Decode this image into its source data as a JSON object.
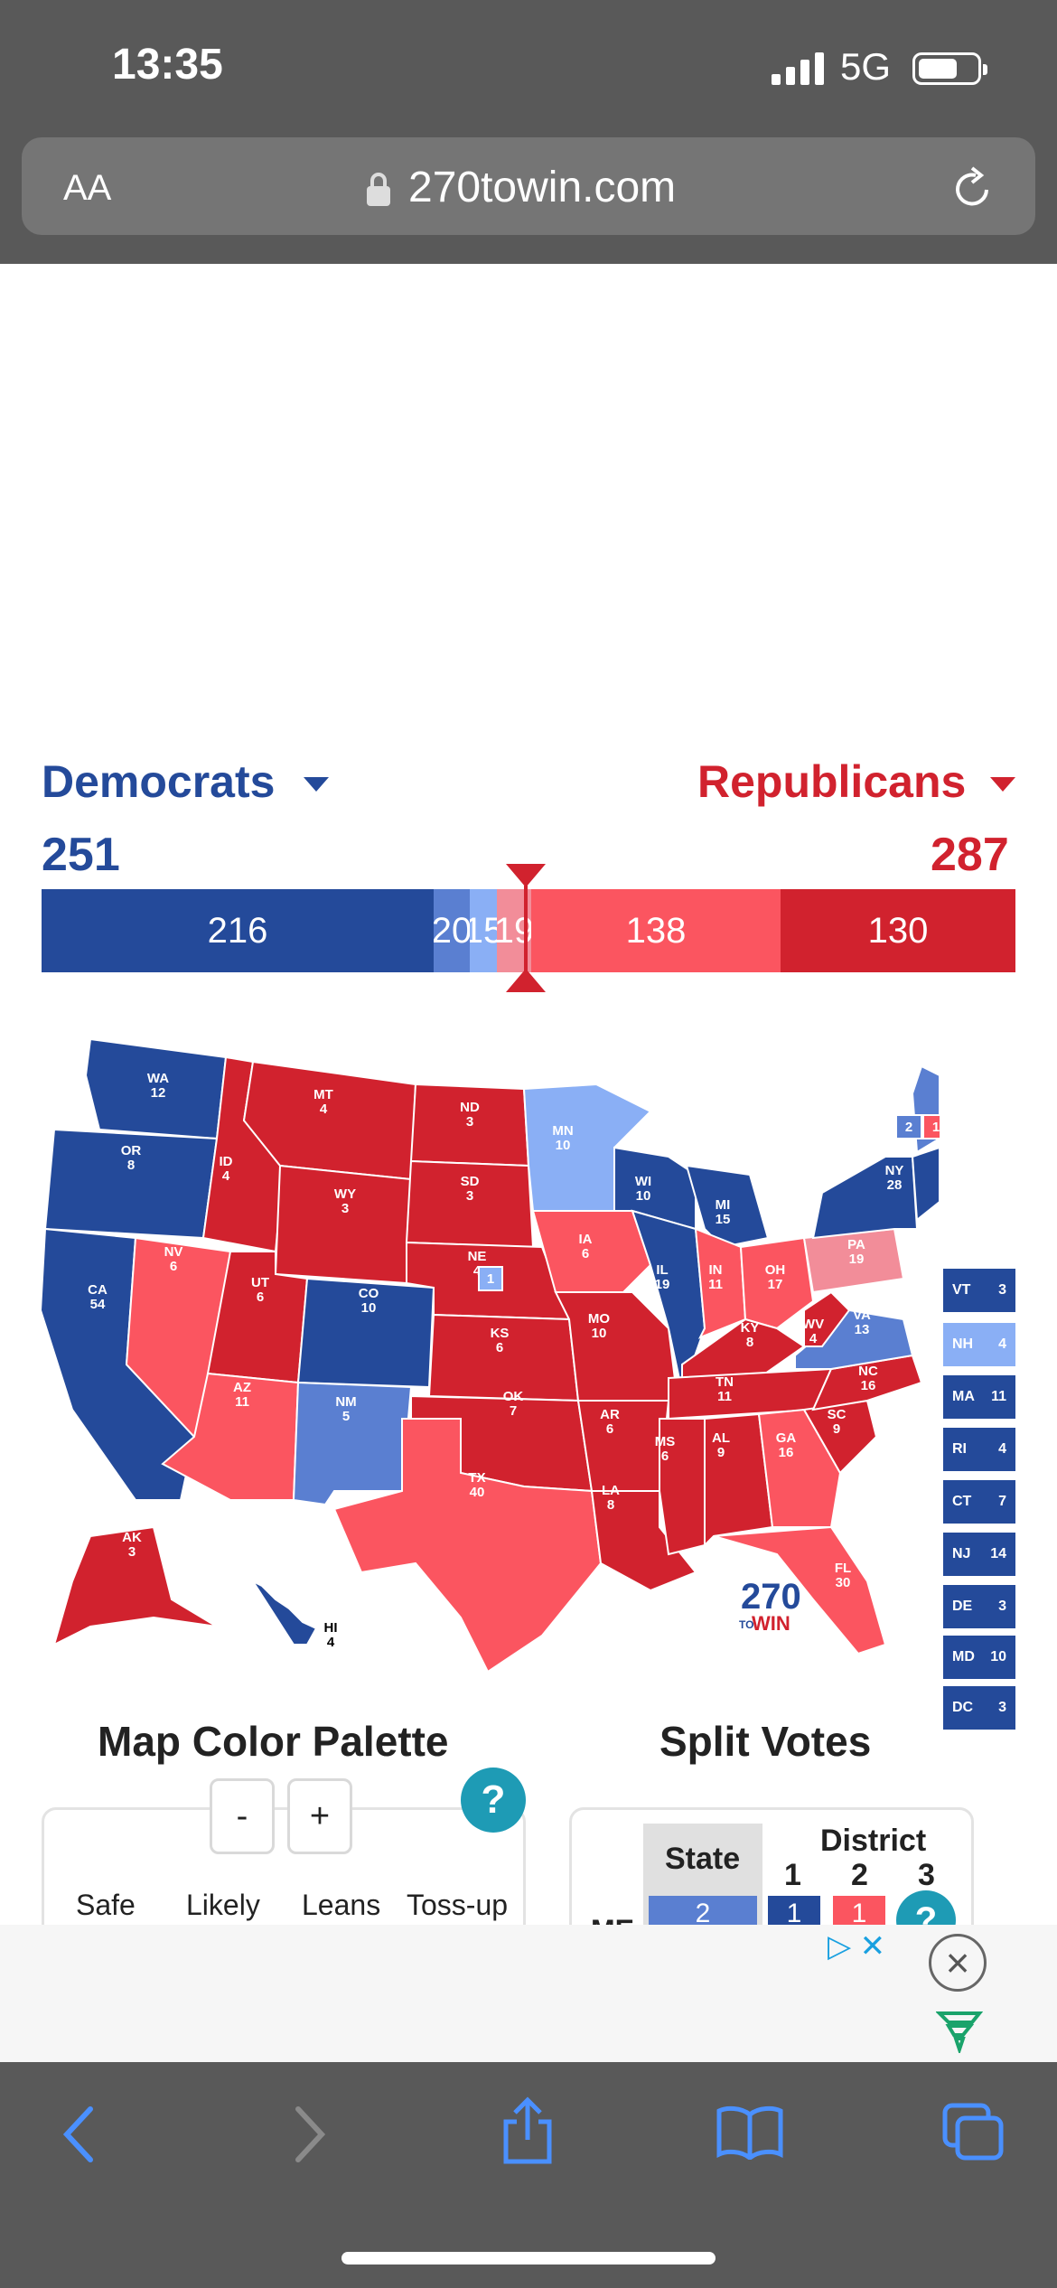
{
  "status_bar": {
    "time": "13:35",
    "network": "5G"
  },
  "browser": {
    "text_size_label": "AA",
    "url": "270towin.com"
  },
  "parties": {
    "democrats": {
      "name": "Democrats",
      "total": "251",
      "color": "#244a9a"
    },
    "republicans": {
      "name": "Republicans",
      "total": "287",
      "color": "#d1222e"
    }
  },
  "bar": {
    "segments": [
      {
        "label": "216",
        "color": "#244a9a"
      },
      {
        "label": "20",
        "color": "#5a7fd1"
      },
      {
        "label": "15",
        "color": "#8aaff5"
      },
      {
        "label": "19",
        "color": "#f28d99"
      },
      {
        "label": "138",
        "color": "#fb5560"
      },
      {
        "label": "130",
        "color": "#d1222e"
      }
    ]
  },
  "states": {
    "WA": "WA\n12",
    "OR": "OR\n8",
    "CA": "CA\n54",
    "NV": "NV\n6",
    "ID": "ID\n4",
    "MT": "MT\n4",
    "WY": "WY\n3",
    "UT": "UT\n6",
    "AZ": "AZ\n11",
    "CO": "CO\n10",
    "NM": "NM\n5",
    "ND": "ND\n3",
    "SD": "SD\n3",
    "NE": "NE\n4",
    "KS": "KS\n6",
    "OK": "OK\n7",
    "TX": "TX\n40",
    "MN": "MN\n10",
    "IA": "IA\n6",
    "MO": "MO\n10",
    "AR": "AR\n6",
    "LA": "LA\n8",
    "WI": "WI\n10",
    "IL": "IL\n19",
    "MI": "MI\n15",
    "IN": "IN\n11",
    "OH": "OH\n17",
    "KY": "KY\n8",
    "TN": "TN\n11",
    "MS": "MS\n6",
    "AL": "AL\n9",
    "GA": "GA\n16",
    "FL": "FL\n30",
    "SC": "SC\n9",
    "NC": "NC\n16",
    "VA": "VA\n13",
    "WV": "WV\n4",
    "PA": "PA\n19",
    "NY": "NY\n28",
    "ME": "ME",
    "AK": "AK\n3",
    "HI": "HI\n4"
  },
  "small_states": [
    {
      "abbr": "VT",
      "ev": "3",
      "color": "#244a9a"
    },
    {
      "abbr": "NH",
      "ev": "4",
      "color": "#8aaff5"
    },
    {
      "abbr": "MA",
      "ev": "11",
      "color": "#244a9a"
    },
    {
      "abbr": "RI",
      "ev": "4",
      "color": "#244a9a"
    },
    {
      "abbr": "CT",
      "ev": "7",
      "color": "#244a9a"
    },
    {
      "abbr": "NJ",
      "ev": "14",
      "color": "#244a9a"
    },
    {
      "abbr": "DE",
      "ev": "3",
      "color": "#244a9a"
    },
    {
      "abbr": "MD",
      "ev": "10",
      "color": "#244a9a"
    },
    {
      "abbr": "DC",
      "ev": "3",
      "color": "#244a9a"
    }
  ],
  "split_badges": {
    "ne_district": "1",
    "me_2": "2",
    "me_d1": "1",
    "me_d2": "1"
  },
  "logo": {
    "number": "270",
    "to": "TO",
    "win": "WIN"
  },
  "palette": {
    "title": "Map Color Palette",
    "minus": "-",
    "plus": "+",
    "help": "?",
    "labels": [
      "Safe",
      "Likely",
      "Leans",
      "Toss-up"
    ]
  },
  "split_votes": {
    "title": "Split Votes",
    "state_header": "State",
    "district_header": "District",
    "districts": [
      "1",
      "2",
      "3"
    ],
    "row_label": "ME",
    "state_value": "2",
    "d1_value": "1",
    "d2_value": "1",
    "help": "?"
  },
  "ad": {
    "close": "×",
    "adchoices": "▷ ✕"
  }
}
